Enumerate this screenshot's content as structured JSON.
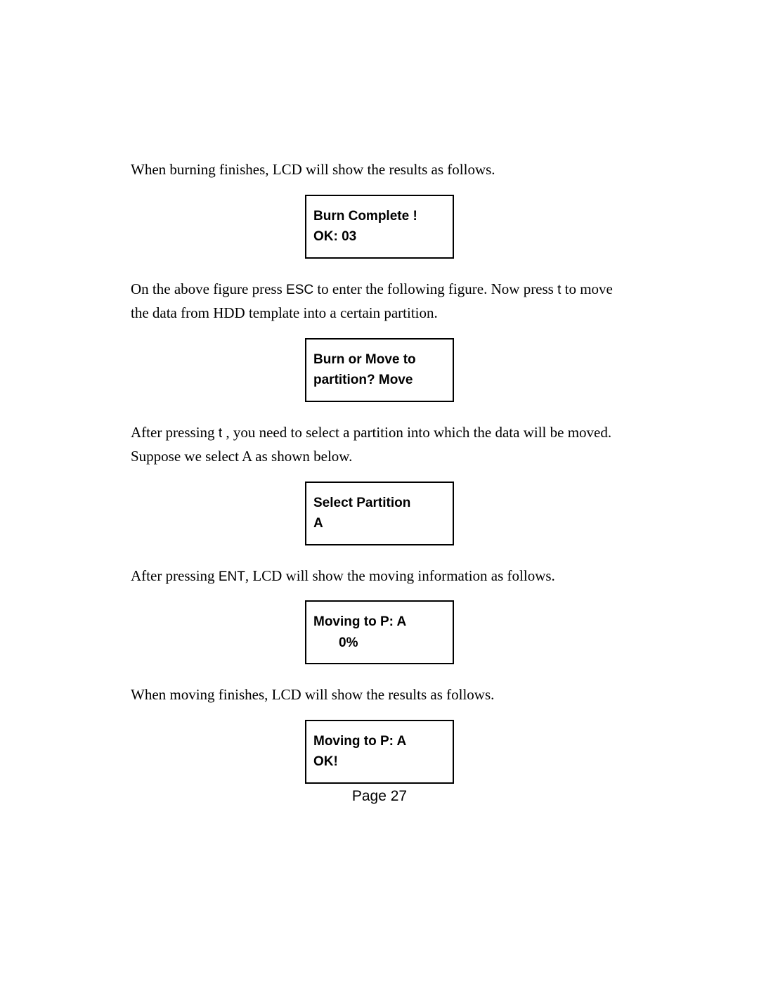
{
  "para1": "When burning finishes, LCD will show the results as follows.",
  "lcd1": {
    "line1": "Burn Complete !",
    "line2": "OK: 03"
  },
  "para2_a": "On the above figure press ",
  "para2_key1": "ESC",
  "para2_b": " to enter the following figure. Now press ",
  "para2_key2": "t",
  "para2_c": "  to move the data from HDD template into a certain partition.",
  "lcd2": {
    "line1": "Burn or Move to",
    "line2": "partition?  Move"
  },
  "para3_a": "After pressing ",
  "para3_key1": "t",
  "para3_b": " , you need to select a partition into which the data will be moved. Suppose we select A as shown below.",
  "lcd3": {
    "line1": "Select Partition",
    "line2": "A"
  },
  "para4_a": "After pressing ",
  "para4_key1": "ENT",
  "para4_b": ", LCD will show the moving information as follows.",
  "lcd4": {
    "line1": "Moving to P: A",
    "line2": "0%"
  },
  "para5": "When moving finishes, LCD will show the results as follows.",
  "lcd5": {
    "line1": "Moving to P: A",
    "line2": "OK!"
  },
  "footer": "Page 27"
}
